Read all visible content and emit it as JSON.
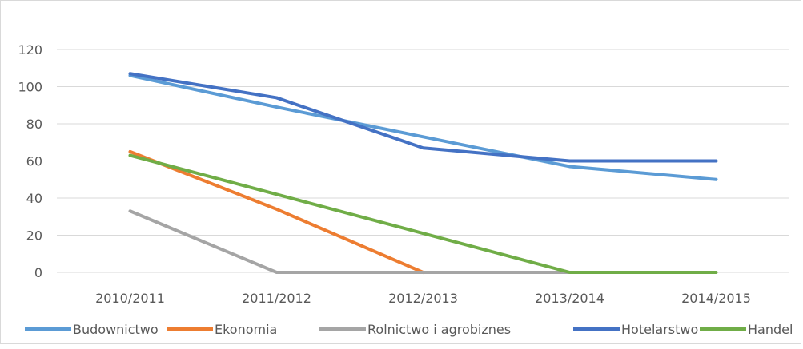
{
  "chart_data": {
    "type": "line",
    "title": "",
    "xlabel": "",
    "ylabel": "",
    "ylim": [
      0,
      120
    ],
    "yticks": [
      0,
      20,
      40,
      60,
      80,
      100,
      120
    ],
    "grid": true,
    "legend_position": "bottom",
    "categories": [
      "2010/2011",
      "2011/2012",
      "2012/2013",
      "2013/2014",
      "2014/2015"
    ],
    "series": [
      {
        "name": "Budownictwo",
        "color": "#5B9BD5",
        "values": [
          106,
          89,
          73,
          57,
          50
        ]
      },
      {
        "name": "Ekonomia",
        "color": "#ED7D31",
        "values": [
          65,
          34,
          0,
          null,
          null
        ]
      },
      {
        "name": "Rolnictwo i agrobiznes",
        "color": "#A5A5A5",
        "values": [
          33,
          0,
          0,
          0,
          null
        ]
      },
      {
        "name": "Hotelarstwo",
        "color": "#4472C4",
        "values": [
          107,
          94,
          67,
          60,
          60
        ]
      },
      {
        "name": "Handel",
        "color": "#70AD47",
        "values": [
          63,
          42,
          21,
          0,
          0
        ]
      }
    ]
  }
}
